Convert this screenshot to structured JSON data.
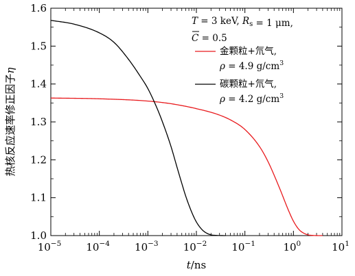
{
  "chart_data": {
    "type": "line",
    "xscale": "log",
    "xlim": [
      1e-05,
      10
    ],
    "ylim": [
      1.0,
      1.6
    ],
    "xlabel": "t/ns",
    "xlabel_italic": "t",
    "xlabel_unit": "/ns",
    "ylabel": "热核反应速率修正因子η",
    "ylabel_text": "热核反应速率修正因子",
    "ylabel_symbol": "η",
    "x_ticks": [
      {
        "value": 1e-05,
        "base": "10",
        "exp": "−5"
      },
      {
        "value": 0.0001,
        "base": "10",
        "exp": "−4"
      },
      {
        "value": 0.001,
        "base": "10",
        "exp": "−3"
      },
      {
        "value": 0.01,
        "base": "10",
        "exp": "−2"
      },
      {
        "value": 0.1,
        "base": "10",
        "exp": "−1"
      },
      {
        "value": 1,
        "base": "10",
        "exp": "0"
      },
      {
        "value": 10,
        "base": "10",
        "exp": "1"
      }
    ],
    "y_ticks": [
      {
        "value": 1.0,
        "label": "1.0"
      },
      {
        "value": 1.1,
        "label": "1.1"
      },
      {
        "value": 1.2,
        "label": "1.2"
      },
      {
        "value": 1.3,
        "label": "1.3"
      },
      {
        "value": 1.4,
        "label": "1.4"
      },
      {
        "value": 1.5,
        "label": "1.5"
      },
      {
        "value": 1.6,
        "label": "1.6"
      }
    ],
    "annotation": {
      "line1": "T = 3 keV, R",
      "line1_sub": "s",
      "line1_tail": " = 1 μm,",
      "line2": "C = 0.5"
    },
    "legend_position": "top-right",
    "series": [
      {
        "name": "金颗粒+氘气,",
        "name_line2": "ρ = 4.9 g/cm",
        "name_line2_sup": "3",
        "color": "#e8191c",
        "x": [
          1e-05,
          0.0001,
          0.001,
          0.003,
          0.01,
          0.03,
          0.06,
          0.1,
          0.2,
          0.3,
          0.5,
          0.8,
          1.0,
          1.3,
          1.6,
          2.0,
          2.5,
          3.0,
          4.0
        ],
        "y": [
          1.363,
          1.361,
          1.355,
          1.348,
          1.335,
          1.318,
          1.3,
          1.28,
          1.235,
          1.195,
          1.13,
          1.065,
          1.038,
          1.016,
          1.007,
          1.002,
          1.0005,
          1.0001,
          1.0
        ]
      },
      {
        "name": "碳颗粒+氘气,",
        "name_line2": "ρ = 4.2 g/cm",
        "name_line2_sup": "3",
        "color": "#000000",
        "x": [
          1e-05,
          3e-05,
          0.0001,
          0.0002,
          0.0004,
          0.0007,
          0.001,
          0.0015,
          0.002,
          0.003,
          0.004,
          0.005,
          0.006,
          0.008,
          0.01,
          0.013,
          0.016,
          0.02,
          0.025,
          0.03,
          0.04
        ],
        "y": [
          1.568,
          1.558,
          1.535,
          1.51,
          1.465,
          1.42,
          1.388,
          1.34,
          1.3,
          1.235,
          1.18,
          1.138,
          1.105,
          1.062,
          1.036,
          1.016,
          1.007,
          1.002,
          1.0006,
          1.0002,
          1.0
        ]
      }
    ]
  }
}
